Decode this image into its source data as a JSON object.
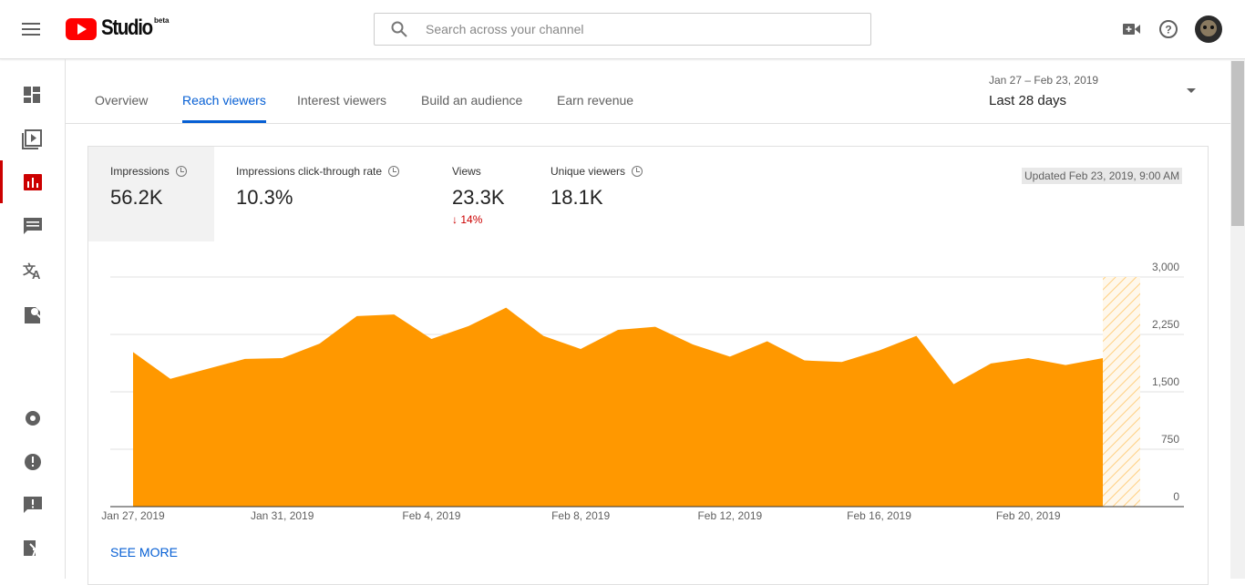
{
  "header": {
    "logo": "Studio",
    "badge": "beta",
    "search_placeholder": "Search across your channel"
  },
  "tabs": [
    "Overview",
    "Reach viewers",
    "Interest viewers",
    "Build an audience",
    "Earn revenue"
  ],
  "active_tab": 1,
  "date_range": {
    "range": "Jan 27 – Feb 23, 2019",
    "label": "Last 28 days"
  },
  "metrics": [
    {
      "label": "Impressions",
      "value": "56.2K"
    },
    {
      "label": "Impressions click-through rate",
      "value": "10.3%"
    },
    {
      "label": "Views",
      "value": "23.3K",
      "change": "14%"
    },
    {
      "label": "Unique viewers",
      "value": "18.1K"
    }
  ],
  "updated": "Updated Feb 23, 2019, 9:00 AM",
  "see_more": "SEE MORE",
  "chart_data": {
    "type": "area",
    "categories": [
      "Jan 27, 2019",
      null,
      null,
      null,
      "Jan 31, 2019",
      null,
      null,
      null,
      "Feb 4, 2019",
      null,
      null,
      null,
      "Feb 8, 2019",
      null,
      null,
      null,
      "Feb 12, 2019",
      null,
      null,
      null,
      "Feb 16, 2019",
      null,
      null,
      null,
      "Feb 20, 2019",
      null,
      null,
      null
    ],
    "values": [
      2020,
      1670,
      1800,
      1930,
      1940,
      2130,
      2490,
      2510,
      2190,
      2360,
      2600,
      2230,
      2060,
      2310,
      2350,
      2120,
      1960,
      2160,
      1910,
      1890,
      2040,
      2230,
      1600,
      1870,
      1940,
      1850,
      1940,
      null
    ],
    "color": "#ff9800",
    "ylim": [
      0,
      3000
    ],
    "yticks": [
      0,
      750,
      {
        "value": 1500,
        "label": "1,500"
      },
      {
        "value": 2250,
        "label": "2,250"
      },
      {
        "value": 3000,
        "label": "3,000"
      }
    ],
    "grid": true
  }
}
